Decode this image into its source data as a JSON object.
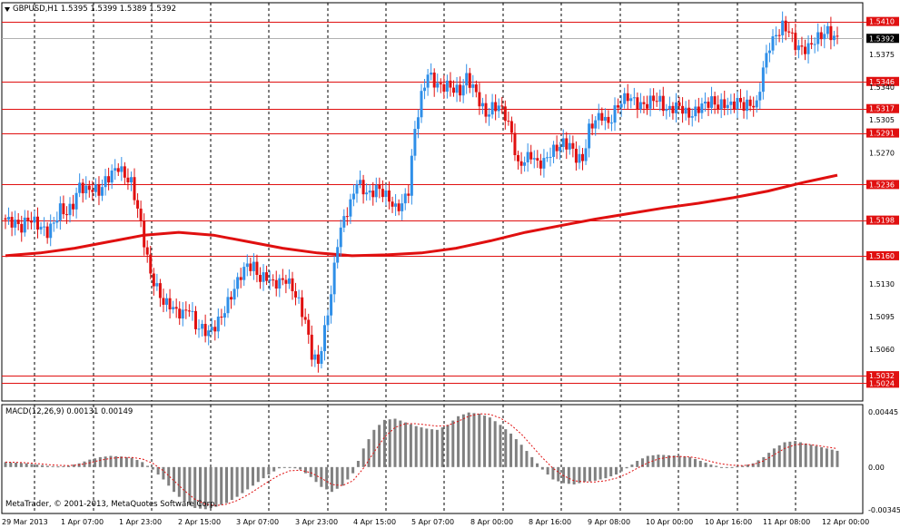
{
  "chart": {
    "title": "GBPUSD,H1  1.5395 1.5399 1.5389 1.5392",
    "symbol_icon": "triangle-down-icon",
    "price_axis": [
      "1.5410",
      "1.5392",
      "1.5375",
      "1.5346",
      "1.5340",
      "1.5317",
      "1.5305",
      "1.5291",
      "1.5270",
      "1.5236",
      "1.5198",
      "1.5160",
      "1.5130",
      "1.5095",
      "1.5060",
      "1.5032",
      "1.5024"
    ],
    "time_axis": [
      "29 Mar 2013",
      "1 Apr 07:00",
      "1 Apr 23:00",
      "2 Apr 15:00",
      "3 Apr 07:00",
      "3 Apr 23:00",
      "4 Apr 15:00",
      "5 Apr 07:00",
      "8 Apr 00:00",
      "8 Apr 16:00",
      "9 Apr 08:00",
      "10 Apr 00:00",
      "10 Apr 16:00",
      "11 Apr 08:00",
      "12 Apr 00:00"
    ],
    "level_lines": [
      "1.5410",
      "1.5346",
      "1.5317",
      "1.5291",
      "1.5236",
      "1.5198",
      "1.5160",
      "1.5032",
      "1.5024"
    ],
    "current_price": "1.5392",
    "colors": {
      "bull": "#2f8fe8",
      "bear": "#e01010",
      "ma": "#e01010",
      "level": "#e01010",
      "grid": "#000000",
      "macd_hist": "#808080",
      "signal": "#e01010"
    }
  },
  "macd": {
    "title": "MACD(12,26,9) 0.00131 0.00149",
    "axis": [
      "0.00445",
      "0.00",
      "-0.00345"
    ]
  },
  "footer": {
    "copyright": "MetaTrader, © 2001-2013, MetaQuotes Software Corp."
  },
  "chart_data": {
    "type": "candlestick",
    "title": "GBPUSD,H1",
    "ohlc_last": {
      "open": 1.5395,
      "high": 1.5399,
      "low": 1.5389,
      "close": 1.5392
    },
    "x_labels": [
      "29 Mar 2013",
      "1 Apr 07:00",
      "1 Apr 23:00",
      "2 Apr 15:00",
      "3 Apr 07:00",
      "3 Apr 23:00",
      "4 Apr 15:00",
      "5 Apr 07:00",
      "8 Apr 00:00",
      "8 Apr 16:00",
      "9 Apr 08:00",
      "10 Apr 00:00",
      "10 Apr 16:00",
      "11 Apr 08:00",
      "12 Apr 00:00"
    ],
    "ylim": [
      1.5005,
      1.543
    ],
    "close_path": [
      1.52,
      1.5197,
      1.5195,
      1.519,
      1.52,
      1.5196,
      1.519,
      1.5185,
      1.5195,
      1.521,
      1.5205,
      1.5215,
      1.5235,
      1.523,
      1.5232,
      1.5228,
      1.524,
      1.5248,
      1.5255,
      1.5245,
      1.5238,
      1.521,
      1.5175,
      1.514,
      1.5125,
      1.511,
      1.5108,
      1.51,
      1.5098,
      1.5105,
      1.5085,
      1.5082,
      1.5078,
      1.5085,
      1.5095,
      1.511,
      1.5125,
      1.514,
      1.515,
      1.5148,
      1.5135,
      1.5138,
      1.513,
      1.5132,
      1.5135,
      1.5125,
      1.511,
      1.509,
      1.5055,
      1.5045,
      1.508,
      1.512,
      1.5175,
      1.52,
      1.5215,
      1.524,
      1.523,
      1.5225,
      1.5232,
      1.5228,
      1.522,
      1.521,
      1.5215,
      1.523,
      1.5295,
      1.533,
      1.5355,
      1.5345,
      1.534,
      1.5342,
      1.5338,
      1.5335,
      1.535,
      1.534,
      1.5325,
      1.531,
      1.5318,
      1.532,
      1.531,
      1.529,
      1.5255,
      1.5262,
      1.5268,
      1.5258,
      1.526,
      1.527,
      1.5275,
      1.528,
      1.5278,
      1.5265,
      1.5262,
      1.5295,
      1.5305,
      1.531,
      1.53,
      1.5315,
      1.5325,
      1.533,
      1.5325,
      1.532,
      1.5322,
      1.5328,
      1.5325,
      1.5315,
      1.5318,
      1.532,
      1.5312,
      1.531,
      1.5318,
      1.5322,
      1.5325,
      1.532,
      1.5322,
      1.532,
      1.5325,
      1.532,
      1.5322,
      1.532,
      1.536,
      1.5385,
      1.5395,
      1.5405,
      1.54,
      1.5385,
      1.538,
      1.5382,
      1.539,
      1.5395,
      1.54,
      1.5392
    ],
    "moving_average": [
      1.516,
      1.5163,
      1.5168,
      1.5175,
      1.5182,
      1.5185,
      1.5182,
      1.5175,
      1.5168,
      1.5163,
      1.516,
      1.5161,
      1.5163,
      1.5168,
      1.5176,
      1.5185,
      1.5192,
      1.5199,
      1.5205,
      1.5211,
      1.5216,
      1.5222,
      1.5229,
      1.5238,
      1.5246
    ],
    "macd_ylim": [
      -0.00345,
      0.00445
    ],
    "macd_hist": [
      0.0004,
      0.00035,
      0.0003,
      0.0002,
      0.0001,
      5e-05,
      0.0001,
      0.0003,
      0.0006,
      0.0008,
      0.0009,
      0.00085,
      0.00075,
      0.0004,
      -0.0002,
      -0.001,
      -0.002,
      -0.0028,
      -0.0033,
      -0.0034,
      -0.0032,
      -0.0029,
      -0.0024,
      -0.0018,
      -0.0012,
      -0.0006,
      -0.0001,
      0.0,
      -0.0002,
      -0.0008,
      -0.0016,
      -0.002,
      -0.0015,
      -0.0005,
      0.0015,
      0.003,
      0.0038,
      0.0039,
      0.0036,
      0.0033,
      0.0031,
      0.003,
      0.0034,
      0.0041,
      0.0044,
      0.0043,
      0.004,
      0.0034,
      0.0027,
      0.0018,
      0.0008,
      -0.0002,
      -0.001,
      -0.0013,
      -0.0014,
      -0.0012,
      -0.0011,
      -0.0009,
      -0.0006,
      -0.0001,
      0.0005,
      0.0009,
      0.001,
      0.00095,
      0.0009,
      0.0008,
      0.0005,
      0.0002,
      0.0,
      0.0,
      0.0001,
      0.0003,
      0.0008,
      0.0015,
      0.002,
      0.0021,
      0.0019,
      0.0017,
      0.0015,
      0.00131
    ],
    "macd_signal": [
      0.0004,
      0.00038,
      0.00034,
      0.00028,
      0.0002,
      0.00014,
      0.00012,
      0.00018,
      0.00035,
      0.00055,
      0.0007,
      0.00078,
      0.00078,
      0.00065,
      0.0003,
      -0.0003,
      -0.0011,
      -0.0019,
      -0.0026,
      -0.003,
      -0.0031,
      -0.003,
      -0.0027,
      -0.00225,
      -0.0017,
      -0.00115,
      -0.00065,
      -0.0003,
      -0.00025,
      -0.00045,
      -0.0009,
      -0.0014,
      -0.0015,
      -0.0011,
      -0.0001,
      0.0012,
      0.0024,
      0.0032,
      0.0035,
      0.0035,
      0.0034,
      0.0033,
      0.00335,
      0.0037,
      0.0041,
      0.0043,
      0.00425,
      0.00395,
      0.0034,
      0.00265,
      0.0017,
      0.00075,
      -0.0001,
      -0.0007,
      -0.0011,
      -0.0012,
      -0.0012,
      -0.0011,
      -0.0009,
      -0.00055,
      -0.0001,
      0.00035,
      0.00065,
      0.0008,
      0.00085,
      0.00082,
      0.00068,
      0.00045,
      0.00025,
      0.00015,
      0.00012,
      0.0002,
      0.0005,
      0.001,
      0.0015,
      0.0018,
      0.00185,
      0.00175,
      0.00162,
      0.00149
    ]
  }
}
